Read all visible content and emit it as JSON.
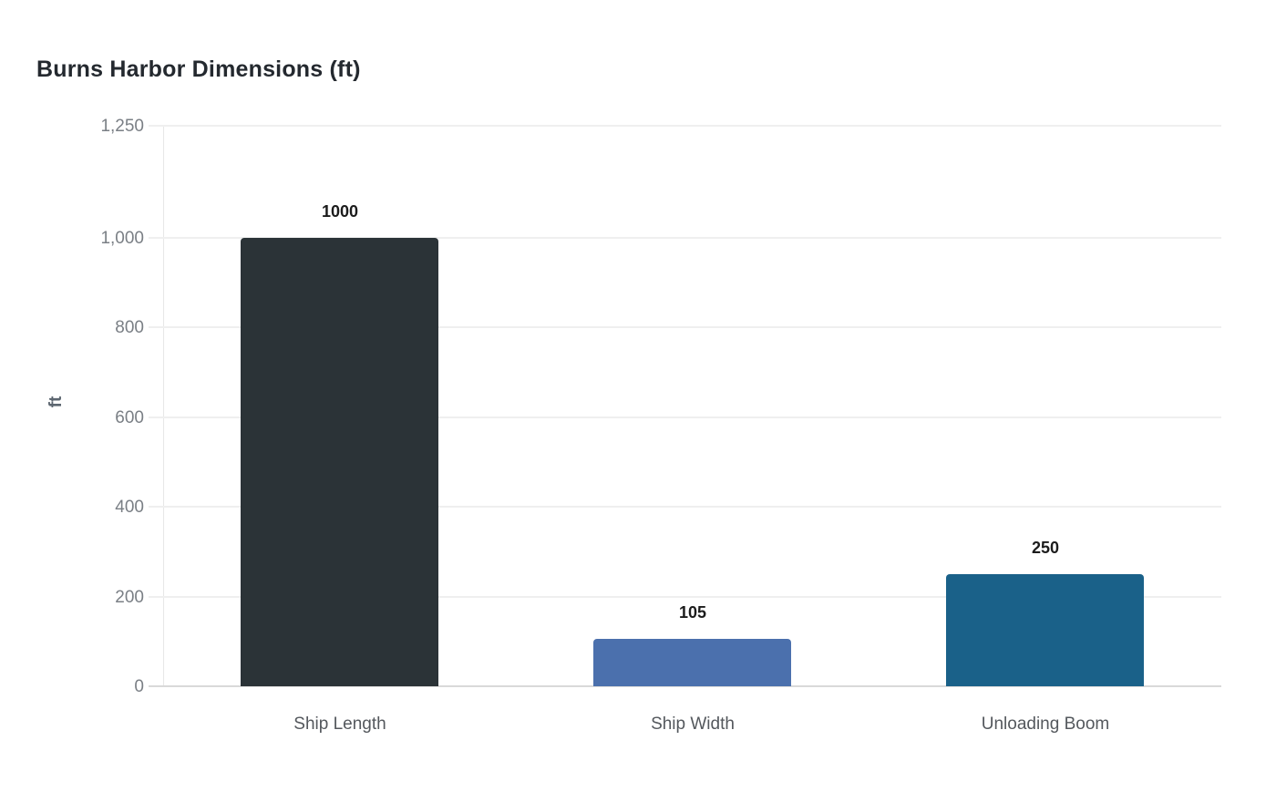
{
  "chart_data": {
    "type": "bar",
    "title": "Burns Harbor Dimensions (ft)",
    "xlabel": "",
    "ylabel": "ft",
    "categories": [
      "Ship Length",
      "Ship Width",
      "Unloading Boom"
    ],
    "values": [
      1000,
      105,
      250
    ],
    "data_labels": [
      "1000",
      "105",
      "250"
    ],
    "bar_colors": [
      "#2b3337",
      "#4b70ad",
      "#1a6189"
    ],
    "ylim": [
      0,
      1250
    ],
    "yticks": [
      0,
      200,
      400,
      600,
      800,
      1000,
      1250
    ],
    "ytick_labels": [
      "0",
      "200",
      "400",
      "600",
      "800",
      "1,000",
      "1,250"
    ],
    "grid": true,
    "legend": false
  },
  "colors": {
    "background": "#ffffff",
    "title_text": "#24292f",
    "tick_label": "#7a7f85",
    "axis_label": "#5c6670",
    "gridline": "#efefef",
    "baseline": "#d9d9d9",
    "axis_line": "#e7e7e7",
    "data_label": "#1c1c1c"
  }
}
